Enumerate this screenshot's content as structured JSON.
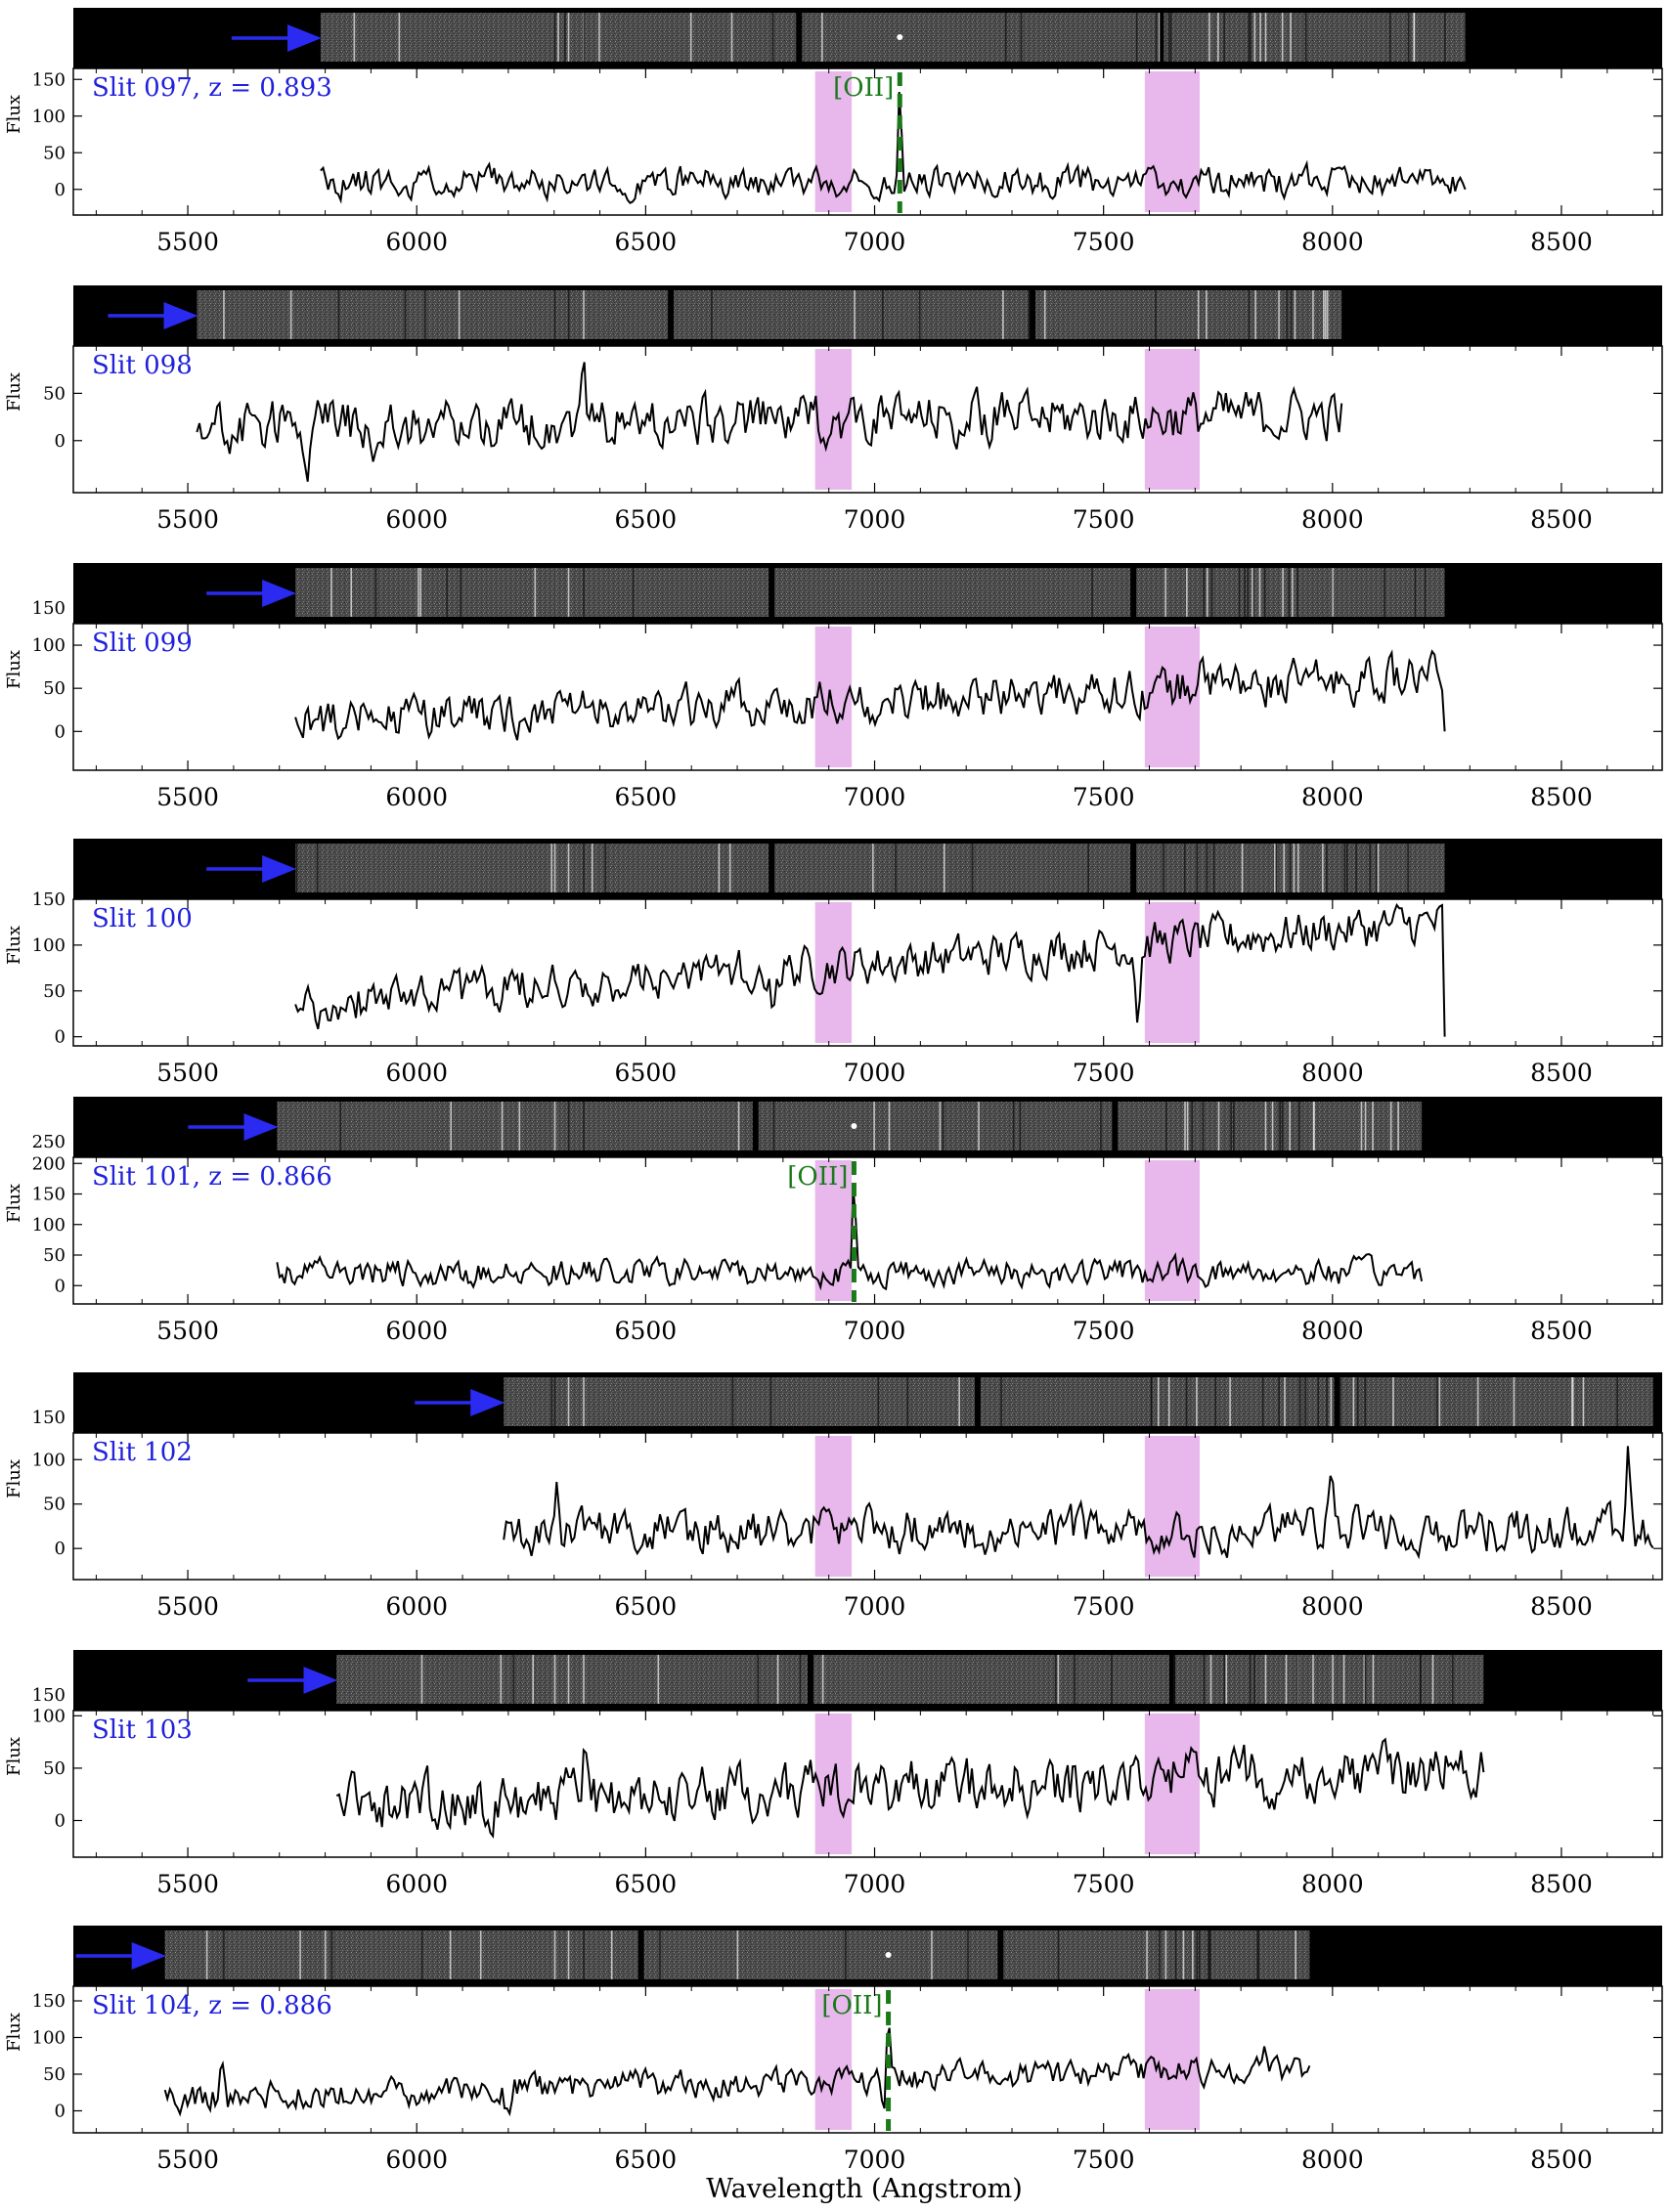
{
  "figure": {
    "xlabel": "Wavelength (Angstrom)",
    "ylabel": "Flux",
    "colors": {
      "spectrum": "#000000",
      "label": "#2020dd",
      "arrow": "#2a2af0",
      "oii": "#1a7a1a",
      "band": "#e8b8ec"
    }
  },
  "chart_data": [
    {
      "type": "line",
      "title": "Slit 097, z = 0.893",
      "slit": "097",
      "redshift": "0.893",
      "xlim": [
        5250,
        8720
      ],
      "ylim": [
        -35,
        165
      ],
      "x_ticks": [
        5500,
        6000,
        6500,
        7000,
        7500,
        8000,
        8500
      ],
      "y_ticks": [
        0,
        50,
        100,
        150
      ],
      "two_d_ticks": [],
      "spectrum_range": [
        5790,
        8290
      ],
      "level": 10,
      "noise": 13,
      "trend": 0,
      "seed": 11,
      "features": [
        {
          "x": 5560,
          "a": 0
        }
      ],
      "emission": {
        "line": "[OII]",
        "x": 7055,
        "peak": 158
      },
      "chip_gaps": [
        6835,
        7625
      ],
      "masked_bands": [
        [
          6870,
          6950
        ],
        [
          7590,
          7710
        ]
      ]
    },
    {
      "type": "line",
      "title": "Slit 098",
      "slit": "098",
      "redshift": "",
      "xlim": [
        5250,
        8720
      ],
      "ylim": [
        -55,
        100
      ],
      "x_ticks": [
        5500,
        6000,
        6500,
        7000,
        7500,
        8000,
        8500
      ],
      "y_ticks": [
        0,
        50
      ],
      "two_d_ticks": [],
      "spectrum_range": [
        5520,
        8020
      ],
      "level": 15,
      "noise": 17,
      "trend": 12,
      "seed": 23,
      "features": [
        {
          "x": 6365,
          "a": 55
        },
        {
          "x": 5760,
          "a": -35
        },
        {
          "x": 5905,
          "a": -45
        }
      ],
      "emission": null,
      "chip_gaps": [
        6555,
        7345
      ],
      "masked_bands": [
        [
          6870,
          6950
        ],
        [
          7590,
          7710
        ]
      ]
    },
    {
      "type": "line",
      "title": "Slit 099",
      "slit": "099",
      "redshift": "",
      "xlim": [
        5250,
        8720
      ],
      "ylim": [
        -45,
        125
      ],
      "x_ticks": [
        5500,
        6000,
        6500,
        7000,
        7500,
        8000,
        8500
      ],
      "y_ticks": [
        0,
        50,
        100
      ],
      "two_d_ticks": [
        150
      ],
      "spectrum_range": [
        5735,
        8245
      ],
      "level": 8,
      "noise": 16,
      "trend": 55,
      "seed": 37,
      "features": [
        {
          "x": 7715,
          "a": 55
        }
      ],
      "emission": null,
      "chip_gaps": [
        6775,
        7565
      ],
      "masked_bands": [
        [
          6870,
          6950
        ],
        [
          7590,
          7710
        ]
      ]
    },
    {
      "type": "line",
      "title": "Slit 100",
      "slit": "100",
      "redshift": "",
      "xlim": [
        5250,
        8720
      ],
      "ylim": [
        -10,
        150
      ],
      "x_ticks": [
        5500,
        6000,
        6500,
        7000,
        7500,
        8000,
        8500
      ],
      "y_ticks": [
        0,
        50,
        100,
        150
      ],
      "two_d_ticks": [],
      "spectrum_range": [
        5735,
        8245
      ],
      "level": 35,
      "noise": 15,
      "trend": 90,
      "seed": 41,
      "features": [
        {
          "x": 7575,
          "a": -80
        },
        {
          "x": 6775,
          "a": -35
        }
      ],
      "emission": null,
      "chip_gaps": [
        6775,
        7565
      ],
      "masked_bands": [
        [
          6870,
          6950
        ],
        [
          7590,
          7710
        ]
      ]
    },
    {
      "type": "line",
      "title": "Slit 101, z = 0.866",
      "slit": "101",
      "redshift": "0.866",
      "xlim": [
        5250,
        8720
      ],
      "ylim": [
        -30,
        210
      ],
      "x_ticks": [
        5500,
        6000,
        6500,
        7000,
        7500,
        8000,
        8500
      ],
      "y_ticks": [
        0,
        50,
        100,
        150,
        200
      ],
      "two_d_ticks": [
        250
      ],
      "spectrum_range": [
        5695,
        8195
      ],
      "level": 22,
      "noise": 14,
      "trend": 0,
      "seed": 53,
      "features": [],
      "emission": {
        "line": "[OII]",
        "x": 6955,
        "peak": 205
      },
      "chip_gaps": [
        6740,
        7525
      ],
      "masked_bands": [
        [
          6870,
          6950
        ],
        [
          7590,
          7710
        ]
      ]
    },
    {
      "type": "line",
      "title": "Slit 102",
      "slit": "102",
      "redshift": "",
      "xlim": [
        5250,
        8720
      ],
      "ylim": [
        -35,
        130
      ],
      "x_ticks": [
        5500,
        6000,
        6500,
        7000,
        7500,
        8000,
        8500
      ],
      "y_ticks": [
        0,
        50,
        100
      ],
      "two_d_ticks": [
        150
      ],
      "spectrum_range": [
        6190,
        8700
      ],
      "level": 20,
      "noise": 16,
      "trend": 0,
      "seed": 67,
      "features": [
        {
          "x": 8645,
          "a": 95
        },
        {
          "x": 6305,
          "a": 50
        },
        {
          "x": 8000,
          "a": 50
        }
      ],
      "emission": null,
      "chip_gaps": [
        7225,
        8010
      ],
      "masked_bands": [
        [
          6870,
          6950
        ],
        [
          7590,
          7710
        ]
      ]
    },
    {
      "type": "line",
      "title": "Slit 103",
      "slit": "103",
      "redshift": "",
      "xlim": [
        5250,
        8720
      ],
      "ylim": [
        -35,
        105
      ],
      "x_ticks": [
        5500,
        6000,
        6500,
        7000,
        7500,
        8000,
        8500
      ],
      "y_ticks": [
        0,
        50,
        100
      ],
      "two_d_ticks": [
        150
      ],
      "spectrum_range": [
        5825,
        8330
      ],
      "level": 15,
      "noise": 17,
      "trend": 35,
      "seed": 79,
      "features": [
        {
          "x": 6365,
          "a": 40
        }
      ],
      "emission": null,
      "chip_gaps": [
        6860,
        7650
      ],
      "masked_bands": [
        [
          6870,
          6950
        ],
        [
          7590,
          7710
        ]
      ]
    },
    {
      "type": "line",
      "title": "Slit 104, z = 0.886",
      "slit": "104",
      "redshift": "0.886",
      "xlim": [
        5250,
        8720
      ],
      "ylim": [
        -30,
        170
      ],
      "x_ticks": [
        5500,
        6000,
        6500,
        7000,
        7500,
        8000,
        8500
      ],
      "y_ticks": [
        0,
        50,
        100,
        150
      ],
      "two_d_ticks": [],
      "spectrum_range": [
        5450,
        7950
      ],
      "level": 18,
      "noise": 12,
      "trend": 40,
      "seed": 97,
      "features": [
        {
          "x": 5575,
          "a": 50
        },
        {
          "x": 6200,
          "a": -35
        },
        {
          "x": 7020,
          "a": -30
        },
        {
          "x": 7850,
          "a": 40
        }
      ],
      "emission": {
        "line": "[OII]",
        "x": 7030,
        "peak": 162
      },
      "chip_gaps": [
        6490,
        7275
      ],
      "masked_bands": [
        [
          6870,
          6950
        ],
        [
          7590,
          7710
        ]
      ]
    }
  ]
}
